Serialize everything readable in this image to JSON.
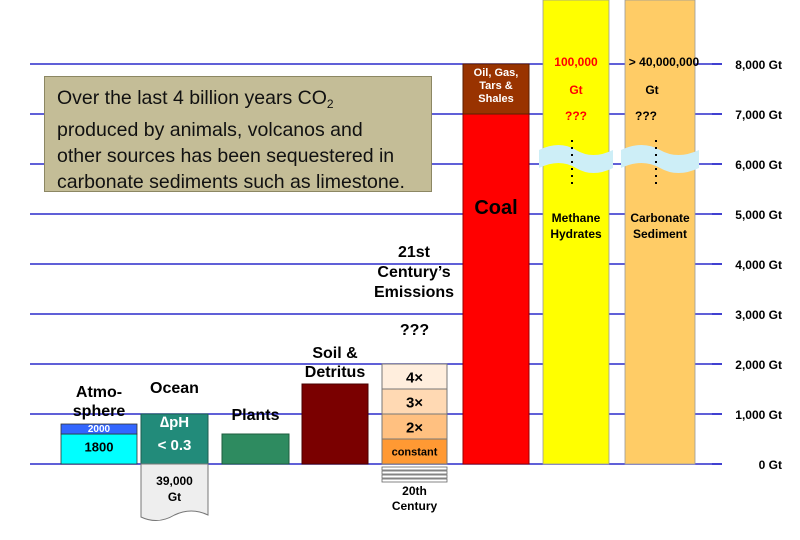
{
  "chart_data": {
    "type": "bar",
    "y_unit": "Gt",
    "ylim": [
      0,
      8000
    ],
    "y_ticks": [
      "0 Gt",
      "1,000 Gt",
      "2,000 Gt",
      "3,000 Gt",
      "4,000 Gt",
      "5,000 Gt",
      "6,000 Gt",
      "7,000 Gt",
      "8,000 Gt"
    ],
    "grid": true,
    "callout": {
      "line1": "Over the last 4 billion years CO",
      "subscript": "2",
      "line2": "produced by animals, volcanos and",
      "line3": "other sources has been sequestered in",
      "line4": "carbonate sediments such as limestone."
    },
    "bars": [
      {
        "id": "atmosphere",
        "label": [
          "Atmo-",
          "sphere"
        ],
        "value": 800,
        "segments": [
          {
            "name": "1800",
            "value": 600,
            "color": "#00ffff"
          },
          {
            "name": "2000",
            "value": 200,
            "color": "#3366ff"
          }
        ]
      },
      {
        "id": "ocean",
        "label": [
          "Ocean"
        ],
        "value": 1000,
        "color": "#228b7a",
        "inner_text": [
          "∆pH",
          "< 0.3"
        ],
        "below_text": [
          "39,000",
          "Gt"
        ],
        "below_value": 1100
      },
      {
        "id": "plants",
        "label": [
          "Plants"
        ],
        "value": 600,
        "color": "#2e8b60"
      },
      {
        "id": "soil",
        "label": [
          "Soil &",
          "Detritus"
        ],
        "value": 1600,
        "color": "#7a0000"
      },
      {
        "id": "emissions",
        "label": [
          "21st",
          "Century’s",
          "Emissions"
        ],
        "above_text": "???",
        "segments": [
          {
            "name": "constant",
            "value": 500,
            "color": "#ff9933"
          },
          {
            "name": "2×",
            "value": 500,
            "color": "#ffc080"
          },
          {
            "name": "3×",
            "value": 500,
            "color": "#ffd9b3"
          },
          {
            "name": "4×",
            "value": 500,
            "color": "#ffeedd"
          }
        ],
        "below_label": [
          "20th",
          "Century"
        ]
      },
      {
        "id": "coal",
        "label": [
          "Coal"
        ],
        "value": 8000,
        "segments": [
          {
            "name": "Coal",
            "value": 7000,
            "color": "#ff0000"
          },
          {
            "name": "Oil, Gas, Tars & Shales",
            "value": 1000,
            "color": "#993300",
            "text": [
              "Oil, Gas,",
              "Tars &",
              "Shales"
            ]
          }
        ]
      },
      {
        "id": "methane",
        "label": [
          "Methane",
          "Hydrates"
        ],
        "color": "#ffff00",
        "top_text": [
          "100,000",
          "Gt",
          "???"
        ],
        "actual_value": "100,000 Gt"
      },
      {
        "id": "carbonate",
        "label": [
          "Carbonate",
          "Sediment"
        ],
        "color": "#ffcc66",
        "top_text": [
          "> 40,000,000",
          "Gt",
          "???"
        ],
        "actual_value": "> 40,000,000 Gt"
      }
    ]
  }
}
